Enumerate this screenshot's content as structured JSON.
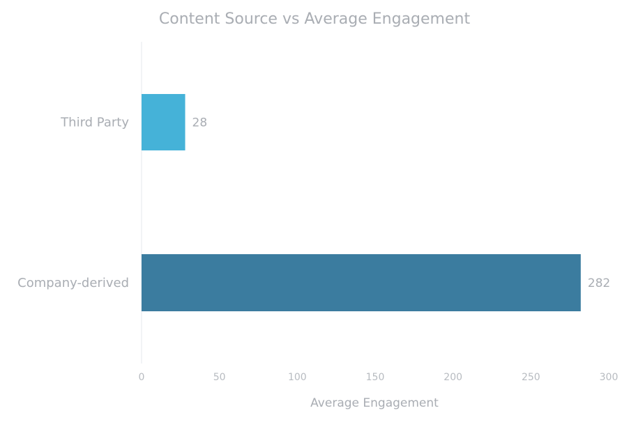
{
  "chart_data": {
    "type": "bar",
    "orientation": "horizontal",
    "title": "Content Source vs Average Engagement",
    "xlabel": "Average Engagement",
    "ylabel": "",
    "categories": [
      "Third Party",
      "Company-derived"
    ],
    "values": [
      28,
      282
    ],
    "value_labels": [
      "28",
      "282"
    ],
    "colors": [
      "#45b2d8",
      "#3b7c9f"
    ],
    "xlim": [
      0,
      300
    ],
    "x_ticks": [
      0,
      50,
      100,
      150,
      200,
      250,
      300
    ],
    "x_tick_labels": [
      "0",
      "50",
      "100",
      "150",
      "200",
      "250",
      "300"
    ],
    "grid": false,
    "legend": "none"
  }
}
